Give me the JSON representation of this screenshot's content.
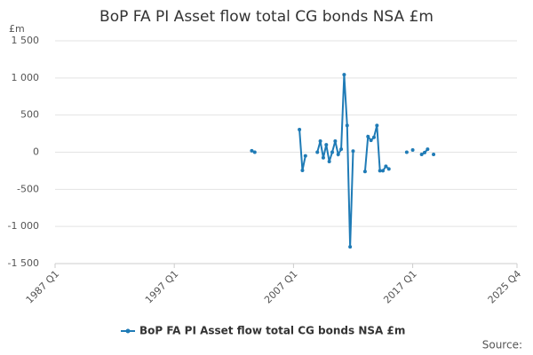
{
  "chart_data": {
    "type": "line",
    "title": "BoP FA PI Asset flow total CG bonds NSA £m",
    "y_unit_label": "£m",
    "source": "Source:",
    "x": [
      2003.5,
      2003.75,
      2004.0,
      2007.5,
      2007.75,
      2008.0,
      2008.25,
      2009.0,
      2009.25,
      2009.5,
      2009.75,
      2010.0,
      2010.25,
      2010.5,
      2010.75,
      2011.0,
      2011.25,
      2011.5,
      2011.75,
      2012.0,
      2012.25,
      2013.0,
      2013.25,
      2013.5,
      2013.75,
      2014.0,
      2014.25,
      2014.5,
      2014.75,
      2015.0,
      2015.25,
      2016.5,
      2016.75,
      2017.0,
      2017.25,
      2017.75,
      2018.0,
      2018.25,
      2018.5,
      2018.75
    ],
    "series": [
      {
        "name": "BoP FA PI Asset flow total CG bonds NSA £m",
        "color": "#1f7bb6",
        "values": [
          20,
          0,
          null,
          305,
          -245,
          -50,
          null,
          0,
          150,
          -75,
          100,
          -125,
          0,
          150,
          -30,
          40,
          1045,
          360,
          -1275,
          15,
          null,
          -260,
          210,
          160,
          200,
          360,
          -250,
          -250,
          -190,
          -225,
          null,
          0,
          null,
          30,
          null,
          -30,
          -5,
          40,
          null,
          -30
        ]
      }
    ],
    "xlim": [
      1987.0,
      2025.75
    ],
    "xticks": [
      {
        "value": 1987.0,
        "label": "1987 Q1"
      },
      {
        "value": 1997.0,
        "label": "1997 Q1"
      },
      {
        "value": 2007.0,
        "label": "2007 Q1"
      },
      {
        "value": 2017.0,
        "label": "2017 Q1"
      },
      {
        "value": 2025.75,
        "label": "2025 Q4"
      }
    ],
    "ylim": [
      -1500,
      1500
    ],
    "yticks": [
      {
        "value": -1500,
        "label": "-1 500"
      },
      {
        "value": -1000,
        "label": "-1 000"
      },
      -500,
      0,
      500,
      {
        "value": 1000,
        "label": "1 000"
      },
      {
        "value": 1500,
        "label": "1 500"
      }
    ],
    "grid": true
  }
}
